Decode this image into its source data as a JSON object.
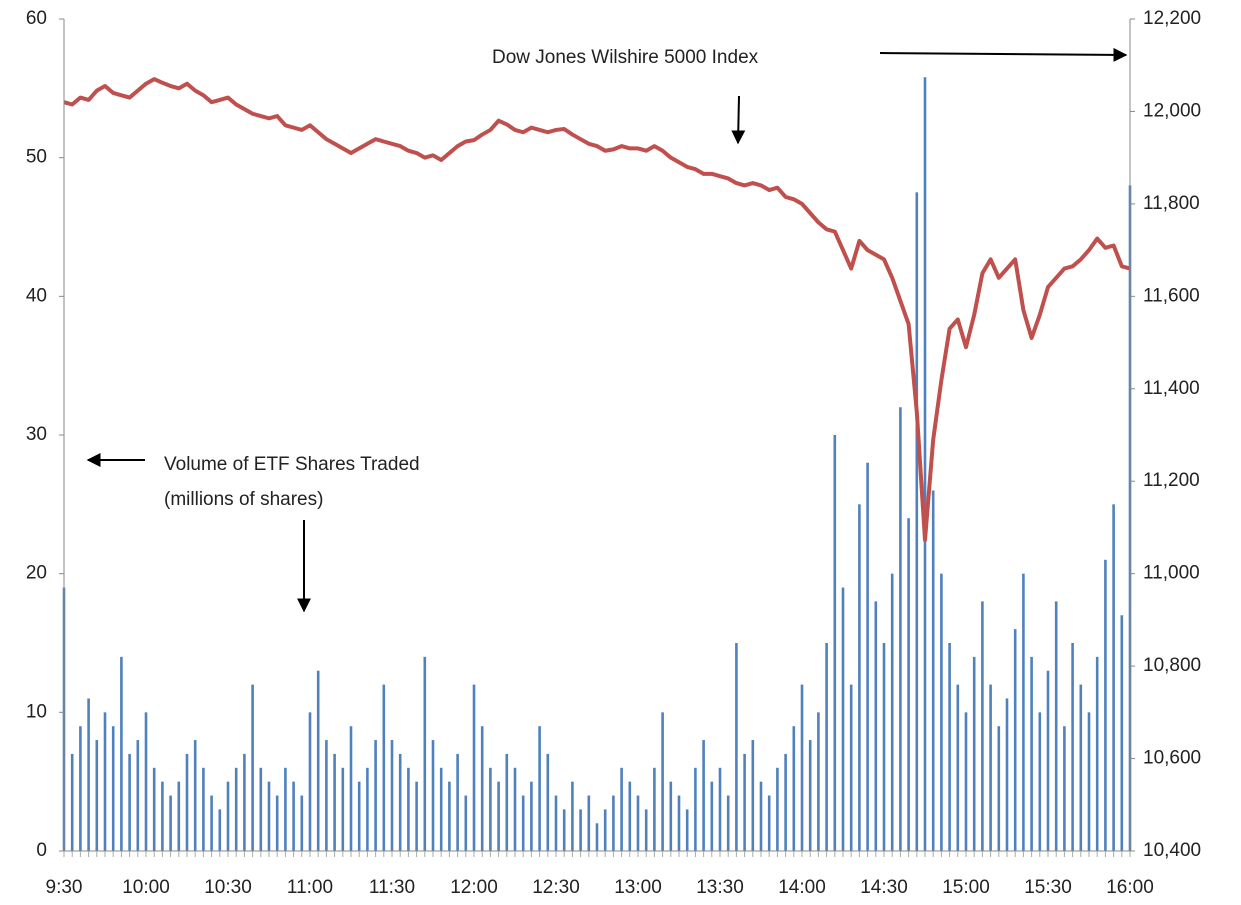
{
  "chart_data": {
    "type": "bar+line",
    "annotations": [
      "Dow Jones Wilshire 5000 Index",
      "Volume of ETF Shares Traded",
      "(millions of shares)"
    ],
    "categories": [
      "9:30",
      null,
      null,
      null,
      null,
      null,
      null,
      null,
      null,
      null,
      "10:00",
      null,
      null,
      null,
      null,
      null,
      null,
      null,
      null,
      null,
      "10:30",
      null,
      null,
      null,
      null,
      null,
      null,
      null,
      null,
      null,
      "11:00",
      null,
      null,
      null,
      null,
      null,
      null,
      null,
      null,
      null,
      "11:30",
      null,
      null,
      null,
      null,
      null,
      null,
      null,
      null,
      null,
      "12:00",
      null,
      null,
      null,
      null,
      null,
      null,
      null,
      null,
      null,
      "12:30",
      null,
      null,
      null,
      null,
      null,
      null,
      null,
      null,
      null,
      "13:00",
      null,
      null,
      null,
      null,
      null,
      null,
      null,
      null,
      null,
      "13:30",
      null,
      null,
      null,
      null,
      null,
      null,
      null,
      null,
      null,
      "14:00",
      null,
      null,
      null,
      null,
      null,
      null,
      null,
      null,
      null,
      "14:30",
      null,
      null,
      null,
      null,
      null,
      null,
      null,
      null,
      null,
      "15:00",
      null,
      null,
      null,
      null,
      null,
      null,
      null,
      null,
      null,
      "15:30",
      null,
      null,
      null,
      null,
      null,
      null,
      null,
      null,
      null,
      "16:00"
    ],
    "series": [
      {
        "type": "bar",
        "color": "#4f81bd",
        "values": [
          19,
          7,
          9,
          11,
          8,
          10,
          9,
          14,
          7,
          8,
          10,
          6,
          5,
          4,
          5,
          7,
          8,
          6,
          4,
          3,
          5,
          6,
          7,
          12,
          6,
          5,
          4,
          6,
          5,
          4,
          10,
          13,
          8,
          7,
          6,
          9,
          5,
          6,
          8,
          12,
          8,
          7,
          6,
          5,
          14,
          8,
          6,
          5,
          7,
          4,
          12,
          9,
          6,
          5,
          7,
          6,
          4,
          5,
          9,
          7,
          4,
          3,
          5,
          3,
          4,
          2,
          3,
          4,
          6,
          5,
          4,
          3,
          6,
          10,
          5,
          4,
          3,
          6,
          8,
          5,
          6,
          4,
          15,
          7,
          8,
          5,
          4,
          6,
          7,
          9,
          12,
          8,
          10,
          15,
          30,
          19,
          12,
          25,
          28,
          18,
          15,
          20,
          32,
          24,
          47.5,
          55.8,
          26,
          20,
          15,
          12,
          10,
          14,
          18,
          12,
          9,
          11,
          16,
          20,
          14,
          10,
          13,
          18,
          9,
          15,
          12,
          10,
          14,
          21,
          25,
          17,
          48
        ]
      },
      {
        "type": "line",
        "axis": "y2",
        "color": "#c0504d",
        "values": [
          12020,
          12015,
          12030,
          12025,
          12045,
          12055,
          12040,
          12035,
          12030,
          12045,
          12060,
          12070,
          12062,
          12055,
          12050,
          12060,
          12045,
          12035,
          12020,
          12025,
          12030,
          12015,
          12005,
          11995,
          11990,
          11985,
          11990,
          11970,
          11965,
          11960,
          11970,
          11955,
          11940,
          11930,
          11920,
          11910,
          11920,
          11930,
          11940,
          11935,
          11930,
          11925,
          11915,
          11910,
          11900,
          11905,
          11895,
          11910,
          11925,
          11935,
          11938,
          11950,
          11960,
          11980,
          11972,
          11960,
          11955,
          11965,
          11960,
          11955,
          11960,
          11962,
          11950,
          11940,
          11930,
          11925,
          11915,
          11918,
          11925,
          11920,
          11920,
          11915,
          11925,
          11915,
          11900,
          11890,
          11880,
          11875,
          11865,
          11865,
          11860,
          11855,
          11845,
          11840,
          11845,
          11840,
          11830,
          11835,
          11815,
          11810,
          11800,
          11780,
          11760,
          11745,
          11740,
          11700,
          11660,
          11720,
          11700,
          11690,
          11680,
          11640,
          11590,
          11540,
          11350,
          11073,
          11290,
          11419,
          11530,
          11550,
          11490,
          11560,
          11650,
          11680,
          11640,
          11660,
          11680,
          11570,
          11510,
          11560,
          11620,
          11640,
          11660,
          11665,
          11680,
          11700,
          11725,
          11705,
          11710,
          11665,
          11660
        ]
      }
    ],
    "ylim": [
      0,
      60
    ],
    "yticks": [
      0,
      10,
      20,
      30,
      40,
      50,
      60
    ],
    "y2lim": [
      10400,
      12200
    ],
    "y2ticks": [
      {
        "value": 10400,
        "label": "10,400"
      },
      {
        "value": 10600,
        "label": "10,600"
      },
      {
        "value": 10800,
        "label": "10,800"
      },
      {
        "value": 11000,
        "label": "11,000"
      },
      {
        "value": 11200,
        "label": "11,200"
      },
      {
        "value": 11400,
        "label": "11,400"
      },
      {
        "value": 11600,
        "label": "11,600"
      },
      {
        "value": 11800,
        "label": "11,800"
      },
      {
        "value": 12000,
        "label": "12,000"
      },
      {
        "value": 12200,
        "label": "12,200"
      }
    ]
  }
}
